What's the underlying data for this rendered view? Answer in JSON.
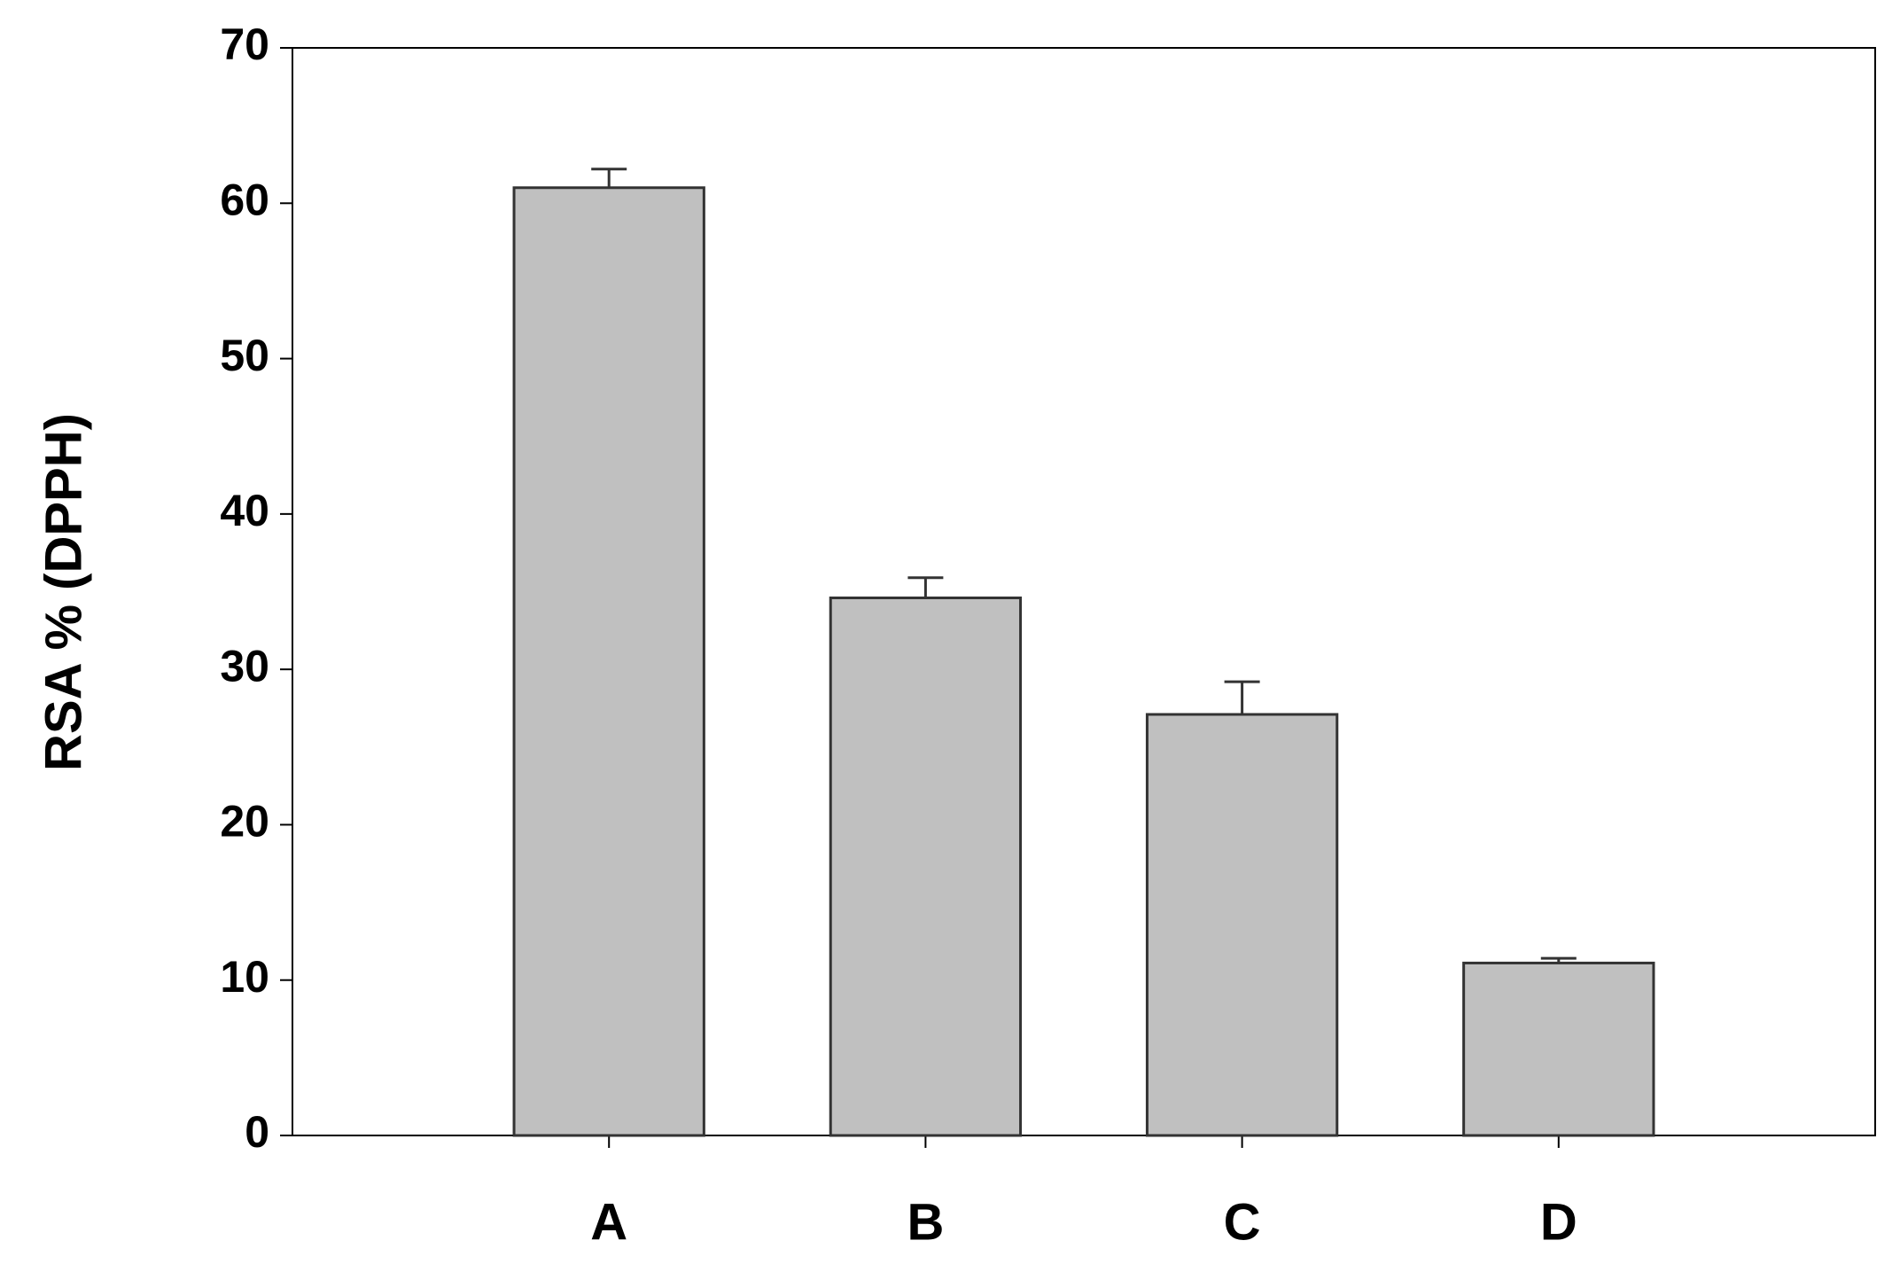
{
  "chart_data": {
    "type": "bar",
    "y_label": "RSA % (DPPH)",
    "categories": [
      "A",
      "B",
      "C",
      "D"
    ],
    "values": [
      61,
      34.6,
      27.1,
      11.1
    ],
    "errors": [
      1.2,
      1.3,
      2.1,
      0.3
    ],
    "color": "#c0c0c0",
    "ylim": [
      0,
      70
    ],
    "yticks": [
      0,
      10,
      20,
      30,
      40,
      50,
      60,
      70
    ],
    "grid": false
  }
}
